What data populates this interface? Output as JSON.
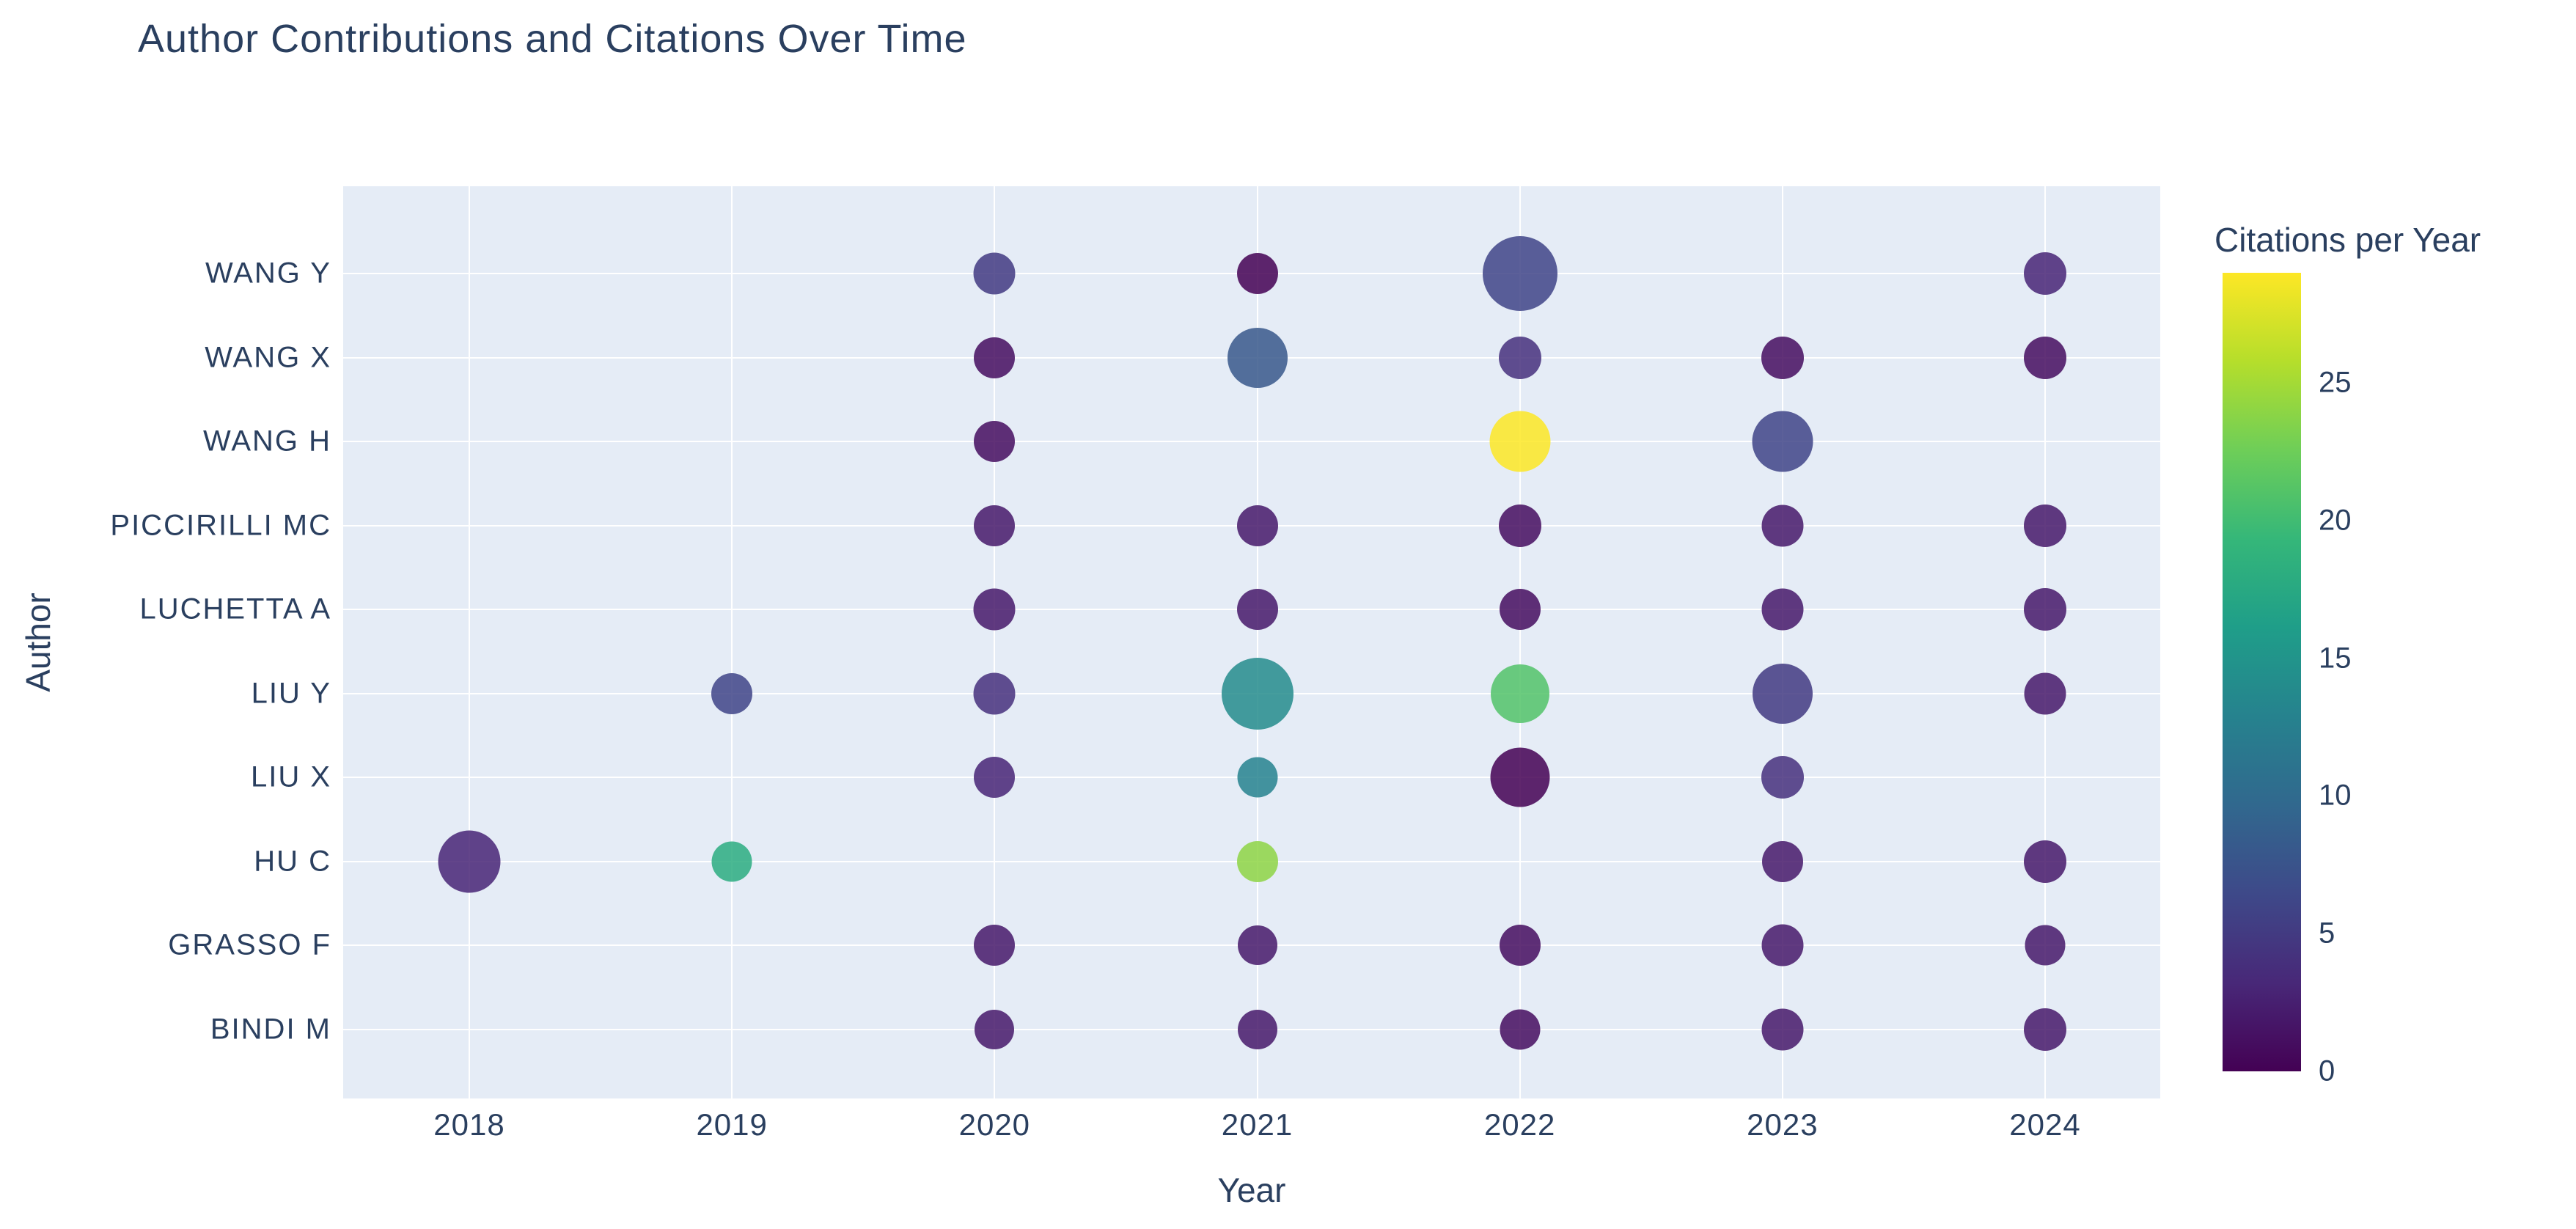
{
  "page": {
    "title": "Author Contributions and Citations Over Time"
  },
  "colors": {
    "text": "#2a3f5f",
    "plot_bg": "#e5ecf6",
    "grid": "#ffffff",
    "paper_bg": "#ffffff",
    "marker_opacity": 0.85,
    "viridis_stops": [
      "#440154",
      "#482878",
      "#3e4989",
      "#31688e",
      "#26828e",
      "#1f9e89",
      "#35b779",
      "#6ece58",
      "#b5de2b",
      "#fde725"
    ]
  },
  "chart_data": {
    "type": "scatter",
    "subtype": "bubble",
    "title": "Author Contributions and Citations Over Time",
    "xlabel": "Year",
    "ylabel": "Author",
    "x_ticks": [
      "2018",
      "2019",
      "2020",
      "2021",
      "2022",
      "2023",
      "2024"
    ],
    "y_categories_top_to_bottom": [
      "WANG Y",
      "WANG X",
      "WANG H",
      "PICCIRILLI MC",
      "LUCHETTA A",
      "LIU Y",
      "LIU X",
      "HU C",
      "GRASSO F",
      "BINDI M"
    ],
    "grid": true,
    "legend_position": "colorbar-right",
    "colorbar": {
      "title": "Citations per Year",
      "min": 0,
      "max": 29,
      "ticks": [
        0,
        5,
        10,
        15,
        20,
        25
      ]
    },
    "size_note": "marker diameter encodes contributions per author-year",
    "points": [
      {
        "author": "HU C",
        "year": 2018,
        "size": 85,
        "citations": 3
      },
      {
        "author": "LIU Y",
        "year": 2019,
        "size": 56,
        "citations": 6
      },
      {
        "author": "HU C",
        "year": 2019,
        "size": 55,
        "citations": 18
      },
      {
        "author": "WANG Y",
        "year": 2020,
        "size": 57,
        "citations": 5
      },
      {
        "author": "WANG X",
        "year": 2020,
        "size": 56,
        "citations": 1
      },
      {
        "author": "WANG H",
        "year": 2020,
        "size": 56,
        "citations": 1
      },
      {
        "author": "PICCIRILLI MC",
        "year": 2020,
        "size": 56,
        "citations": 2
      },
      {
        "author": "LUCHETTA A",
        "year": 2020,
        "size": 57,
        "citations": 2
      },
      {
        "author": "LIU Y",
        "year": 2020,
        "size": 57,
        "citations": 4
      },
      {
        "author": "LIU X",
        "year": 2020,
        "size": 56,
        "citations": 3
      },
      {
        "author": "GRASSO F",
        "year": 2020,
        "size": 56,
        "citations": 2
      },
      {
        "author": "BINDI M",
        "year": 2020,
        "size": 54,
        "citations": 2
      },
      {
        "author": "WANG Y",
        "year": 2021,
        "size": 56,
        "citations": 0
      },
      {
        "author": "WANG X",
        "year": 2021,
        "size": 82,
        "citations": 8
      },
      {
        "author": "PICCIRILLI MC",
        "year": 2021,
        "size": 56,
        "citations": 2
      },
      {
        "author": "LUCHETTA A",
        "year": 2021,
        "size": 56,
        "citations": 2
      },
      {
        "author": "LIU Y",
        "year": 2021,
        "size": 98,
        "citations": 14
      },
      {
        "author": "LIU X",
        "year": 2021,
        "size": 55,
        "citations": 13
      },
      {
        "author": "HU C",
        "year": 2021,
        "size": 56,
        "citations": 24
      },
      {
        "author": "GRASSO F",
        "year": 2021,
        "size": 54,
        "citations": 2
      },
      {
        "author": "BINDI M",
        "year": 2021,
        "size": 54,
        "citations": 2
      },
      {
        "author": "WANG Y",
        "year": 2022,
        "size": 102,
        "citations": 6
      },
      {
        "author": "WANG X",
        "year": 2022,
        "size": 58,
        "citations": 4
      },
      {
        "author": "WANG H",
        "year": 2022,
        "size": 83,
        "citations": 29
      },
      {
        "author": "PICCIRILLI MC",
        "year": 2022,
        "size": 58,
        "citations": 1
      },
      {
        "author": "LUCHETTA A",
        "year": 2022,
        "size": 56,
        "citations": 1
      },
      {
        "author": "LIU Y",
        "year": 2022,
        "size": 80,
        "citations": 21
      },
      {
        "author": "LIU X",
        "year": 2022,
        "size": 81,
        "citations": 0
      },
      {
        "author": "GRASSO F",
        "year": 2022,
        "size": 56,
        "citations": 1
      },
      {
        "author": "BINDI M",
        "year": 2022,
        "size": 55,
        "citations": 1
      },
      {
        "author": "WANG X",
        "year": 2023,
        "size": 58,
        "citations": 1
      },
      {
        "author": "WANG H",
        "year": 2023,
        "size": 83,
        "citations": 6
      },
      {
        "author": "PICCIRILLI MC",
        "year": 2023,
        "size": 57,
        "citations": 2
      },
      {
        "author": "LUCHETTA A",
        "year": 2023,
        "size": 57,
        "citations": 2
      },
      {
        "author": "LIU Y",
        "year": 2023,
        "size": 82,
        "citations": 5
      },
      {
        "author": "LIU X",
        "year": 2023,
        "size": 58,
        "citations": 4
      },
      {
        "author": "HU C",
        "year": 2023,
        "size": 56,
        "citations": 2
      },
      {
        "author": "GRASSO F",
        "year": 2023,
        "size": 57,
        "citations": 2
      },
      {
        "author": "BINDI M",
        "year": 2023,
        "size": 57,
        "citations": 2
      },
      {
        "author": "WANG Y",
        "year": 2024,
        "size": 58,
        "citations": 3
      },
      {
        "author": "WANG X",
        "year": 2024,
        "size": 58,
        "citations": 1
      },
      {
        "author": "PICCIRILLI MC",
        "year": 2024,
        "size": 58,
        "citations": 2
      },
      {
        "author": "LUCHETTA A",
        "year": 2024,
        "size": 58,
        "citations": 2
      },
      {
        "author": "LIU Y",
        "year": 2024,
        "size": 57,
        "citations": 2
      },
      {
        "author": "HU C",
        "year": 2024,
        "size": 58,
        "citations": 2
      },
      {
        "author": "GRASSO F",
        "year": 2024,
        "size": 55,
        "citations": 2
      },
      {
        "author": "BINDI M",
        "year": 2024,
        "size": 58,
        "citations": 2
      }
    ]
  }
}
